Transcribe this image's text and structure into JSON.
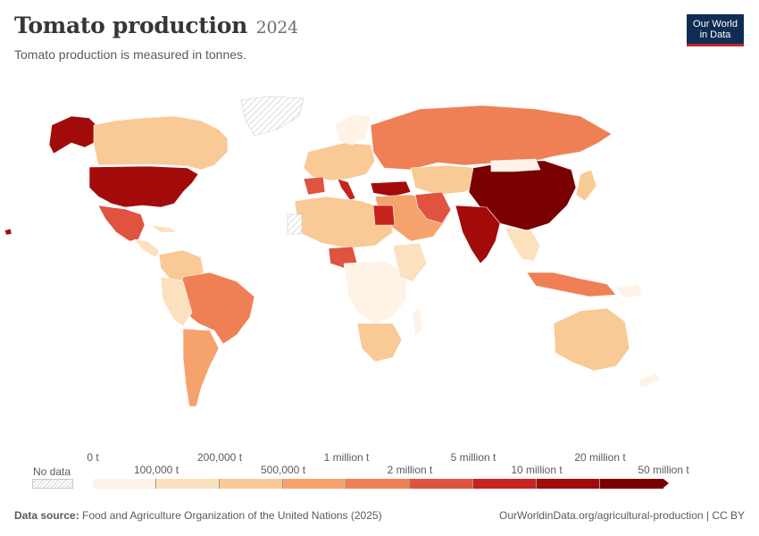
{
  "header": {
    "title": "Tomato production",
    "year": "2024",
    "subtitle": "Tomato production is measured in tonnes."
  },
  "logo": {
    "line1": "Our World",
    "line2": "in Data"
  },
  "legend": {
    "no_data_label": "No data",
    "ticks_top": [
      "0 t",
      "200,000 t",
      "1 million t",
      "5 million t",
      "20 million t"
    ],
    "ticks_bottom": [
      "100,000 t",
      "500,000 t",
      "2 million t",
      "10 million t",
      "50 million t"
    ],
    "colors": [
      "#fef3e6",
      "#fbe1bd",
      "#f9c996",
      "#f5a26d",
      "#ef8055",
      "#e0533f",
      "#c7231f",
      "#a30b0b",
      "#7a0000"
    ]
  },
  "footer": {
    "source_label": "Data source:",
    "source_text": "Food and Agriculture Organization of the United Nations (2025)",
    "url": "OurWorldinData.org/agricultural-production | CC BY"
  }
}
